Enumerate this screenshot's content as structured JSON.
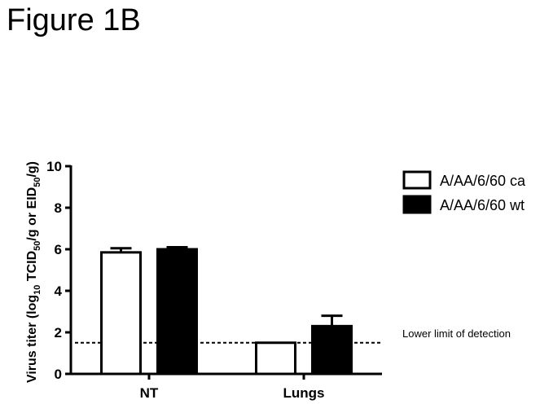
{
  "figure_title": "Figure 1B",
  "chart_data": {
    "type": "bar",
    "title": "",
    "xlabel": "",
    "ylabel": "Virus titer (log10 TCID50/g or EID50/g)",
    "ylabel_parts": {
      "start": "Virus titer (log",
      "sub1": "10",
      "mid": " TCID",
      "sub2": "50",
      "mid2": "/g or EID",
      "sub3": "50",
      "end": "/g)"
    },
    "ylim": [
      0,
      10
    ],
    "yticks": [
      0,
      2,
      4,
      6,
      8,
      10
    ],
    "ytick_labels": [
      "0",
      "2",
      "4",
      "6",
      "8",
      "10"
    ],
    "categories": [
      "NT",
      "Lungs"
    ],
    "series": [
      {
        "name": "A/AA/6/60 ca",
        "values": [
          5.85,
          1.5
        ],
        "errors": [
          0.2,
          0
        ],
        "fill": "#ffffff",
        "stroke": "#000000"
      },
      {
        "name": "A/AA/6/60 wt",
        "values": [
          6.0,
          2.3
        ],
        "errors": [
          0.1,
          0.5
        ],
        "fill": "#000000",
        "stroke": "#000000"
      }
    ],
    "reference_line": {
      "value": 1.5,
      "label": "Lower limit of detection",
      "style": "dashed"
    },
    "legend_position": "top-right",
    "grid": false
  }
}
